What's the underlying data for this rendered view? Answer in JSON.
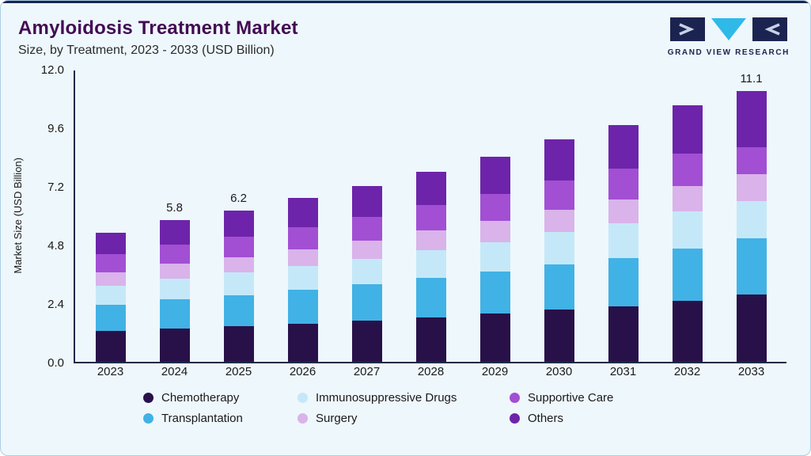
{
  "header": {
    "title": "Amyloidosis Treatment Market",
    "subtitle": "Size, by Treatment, 2023 - 2033 (USD Billion)",
    "logo_text": "GRAND VIEW RESEARCH"
  },
  "chart_data": {
    "type": "bar",
    "stacked": true,
    "title": "Amyloidosis Treatment Market Size, by Treatment, 2023 - 2033 (USD Billion)",
    "xlabel": "",
    "ylabel": "Market Size (USD Billion)",
    "ylim": [
      0,
      12.0
    ],
    "ytick_labels": [
      "0.0",
      "2.4",
      "4.8",
      "7.2",
      "9.6",
      "12.0"
    ],
    "grid": false,
    "legend_position": "bottom",
    "categories": [
      "2023",
      "2024",
      "2025",
      "2026",
      "2027",
      "2028",
      "2029",
      "2030",
      "2031",
      "2032",
      "2033"
    ],
    "series": [
      {
        "name": "Chemotherapy",
        "color": "#281149",
        "values": [
          1.25,
          1.36,
          1.46,
          1.57,
          1.69,
          1.83,
          1.97,
          2.13,
          2.28,
          2.5,
          2.75
        ]
      },
      {
        "name": "Transplantation",
        "color": "#41b2e5",
        "values": [
          1.1,
          1.2,
          1.28,
          1.38,
          1.48,
          1.6,
          1.72,
          1.86,
          1.98,
          2.15,
          2.3
        ]
      },
      {
        "name": "Immunosuppressive Drugs",
        "color": "#c5e8f8",
        "values": [
          0.78,
          0.85,
          0.91,
          0.98,
          1.05,
          1.14,
          1.22,
          1.32,
          1.41,
          1.5,
          1.55
        ]
      },
      {
        "name": "Surgery",
        "color": "#d9b3ea",
        "values": [
          0.55,
          0.6,
          0.64,
          0.69,
          0.74,
          0.8,
          0.86,
          0.93,
          0.99,
          1.05,
          1.08
        ]
      },
      {
        "name": "Supportive Care",
        "color": "#a24fd4",
        "values": [
          0.74,
          0.8,
          0.85,
          0.91,
          0.97,
          1.04,
          1.11,
          1.19,
          1.26,
          1.33,
          1.1
        ]
      },
      {
        "name": "Others",
        "color": "#6d24aa",
        "values": [
          0.88,
          0.99,
          1.06,
          1.17,
          1.27,
          1.39,
          1.52,
          1.67,
          1.78,
          1.97,
          2.32
        ]
      }
    ],
    "totals": [
      5.3,
      5.8,
      6.2,
      6.7,
      7.2,
      7.8,
      8.4,
      9.1,
      9.7,
      10.5,
      11.1
    ],
    "bar_labels": [
      "",
      "5.8",
      "6.2",
      "",
      "",
      "",
      "",
      "",
      "",
      "",
      "11.1"
    ],
    "legend_order": [
      "Chemotherapy",
      "Immunosuppressive Drugs",
      "Supportive Care",
      "Transplantation",
      "Surgery",
      "Others"
    ],
    "accent_colors": {
      "axis": "#1c2b4a",
      "card_border": "#aacfe4",
      "card_background": "#eef7fc",
      "top_bar": "#1b2450",
      "title_text": "#430a54",
      "logo_navy": "#1b2450",
      "logo_cyan": "#2fb9e8"
    }
  }
}
